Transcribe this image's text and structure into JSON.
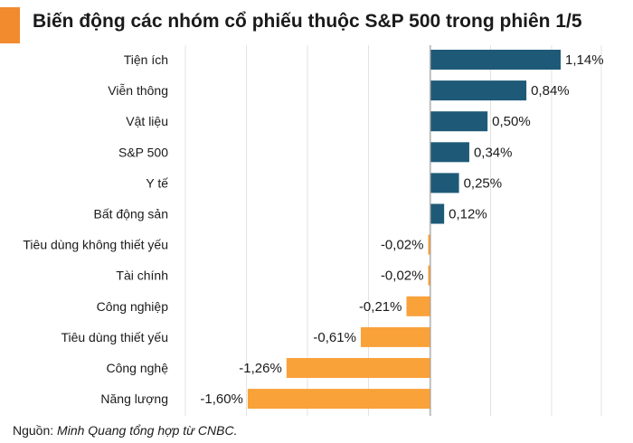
{
  "title": "Biến động các nhóm cổ phiếu thuộc S&P 500 trong phiên 1/5",
  "source_label": "Nguồn:",
  "source_text": "Minh Quang tổng hợp từ CNBC.",
  "colors": {
    "positive": "#1e5a78",
    "negative": "#f9a23a",
    "accent": "#f28a2e"
  },
  "chart_data": {
    "type": "bar",
    "orientation": "horizontal",
    "categories": [
      "Tiện ích",
      "Viễn thông",
      "Vật liệu",
      "S&P 500",
      "Y tế",
      "Bất động sản",
      "Tiêu dùng không thiết yếu",
      "Tài chính",
      "Công nghiệp",
      "Tiêu dùng thiết yếu",
      "Công nghệ",
      "Năng lượng"
    ],
    "values": [
      1.14,
      0.84,
      0.5,
      0.34,
      0.25,
      0.12,
      -0.02,
      -0.02,
      -0.21,
      -0.61,
      -1.26,
      -1.6
    ],
    "labels": [
      "1,14%",
      "0,84%",
      "0,50%",
      "0,34%",
      "0,25%",
      "0,12%",
      "-0,02%",
      "-0,02%",
      "-0,21%",
      "-0,61%",
      "-1,26%",
      "-1,60%"
    ],
    "xlim": [
      -1.6,
      1.14
    ],
    "grid": "vertical"
  }
}
